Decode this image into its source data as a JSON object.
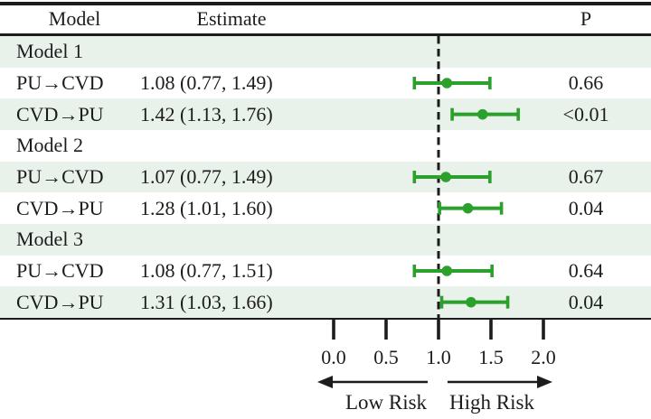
{
  "figure": {
    "header": {
      "model": "Model",
      "estimate": "Estimate",
      "p": "P"
    },
    "rows": [
      {
        "type": "group",
        "label": "Model 1",
        "estimate": "",
        "p": ""
      },
      {
        "type": "data",
        "label": "PU→CVD",
        "estimate": "1.08 (0.77, 1.49)",
        "p": "0.66",
        "value": 1.08,
        "low": 0.77,
        "high": 1.49
      },
      {
        "type": "data",
        "label": "CVD→PU",
        "estimate": "1.42 (1.13, 1.76)",
        "p": "<0.01",
        "value": 1.42,
        "low": 1.13,
        "high": 1.76
      },
      {
        "type": "group",
        "label": "Model 2",
        "estimate": "",
        "p": ""
      },
      {
        "type": "data",
        "label": "PU→CVD",
        "estimate": "1.07 (0.77, 1.49)",
        "p": "0.67",
        "value": 1.07,
        "low": 0.77,
        "high": 1.49
      },
      {
        "type": "data",
        "label": "CVD→PU",
        "estimate": "1.28 (1.01, 1.60)",
        "p": "0.04",
        "value": 1.28,
        "low": 1.01,
        "high": 1.6
      },
      {
        "type": "group",
        "label": "Model 3",
        "estimate": "",
        "p": ""
      },
      {
        "type": "data",
        "label": "PU→CVD",
        "estimate": "1.08 (0.77, 1.51)",
        "p": "0.64",
        "value": 1.08,
        "low": 0.77,
        "high": 1.51
      },
      {
        "type": "data",
        "label": "CVD→PU",
        "estimate": "1.31 (1.03, 1.66)",
        "p": "0.04",
        "value": 1.31,
        "low": 1.03,
        "high": 1.66
      }
    ],
    "axis": {
      "tick_labels": [
        "0.0",
        "0.5",
        "1.0",
        "1.5",
        "2.0"
      ],
      "tick_values": [
        0.0,
        0.5,
        1.0,
        1.5,
        2.0
      ],
      "reference_value": 1.0,
      "low_label": "Low Risk",
      "high_label": "High Risk"
    },
    "colors": {
      "marker_green": "#2ca02c",
      "ink": "#1c1c1c",
      "row_tint": "#e9f1eb"
    }
  },
  "chart_data": {
    "type": "scatter",
    "variant": "forest_plot",
    "title": "",
    "xlabel": "",
    "ylabel": "",
    "x_ticks": [
      0.0,
      0.5,
      1.0,
      1.5,
      2.0
    ],
    "xlim": [
      -0.2,
      2.4
    ],
    "reference_line": 1.0,
    "grid": false,
    "legend": "none",
    "marker_color": "#2ca02c",
    "annotations": {
      "left_arrow": "Low Risk",
      "right_arrow": "High Risk"
    },
    "columns": [
      "Model",
      "Estimate",
      "P"
    ],
    "series": [
      {
        "group": "Model 1",
        "direction": "PU→CVD",
        "estimate": 1.08,
        "ci_low": 0.77,
        "ci_high": 1.49,
        "p": "0.66"
      },
      {
        "group": "Model 1",
        "direction": "CVD→PU",
        "estimate": 1.42,
        "ci_low": 1.13,
        "ci_high": 1.76,
        "p": "<0.01"
      },
      {
        "group": "Model 2",
        "direction": "PU→CVD",
        "estimate": 1.07,
        "ci_low": 0.77,
        "ci_high": 1.49,
        "p": "0.67"
      },
      {
        "group": "Model 2",
        "direction": "CVD→PU",
        "estimate": 1.28,
        "ci_low": 1.01,
        "ci_high": 1.6,
        "p": "0.04"
      },
      {
        "group": "Model 3",
        "direction": "PU→CVD",
        "estimate": 1.08,
        "ci_low": 0.77,
        "ci_high": 1.51,
        "p": "0.64"
      },
      {
        "group": "Model 3",
        "direction": "CVD→PU",
        "estimate": 1.31,
        "ci_low": 1.03,
        "ci_high": 1.66,
        "p": "0.04"
      }
    ]
  }
}
